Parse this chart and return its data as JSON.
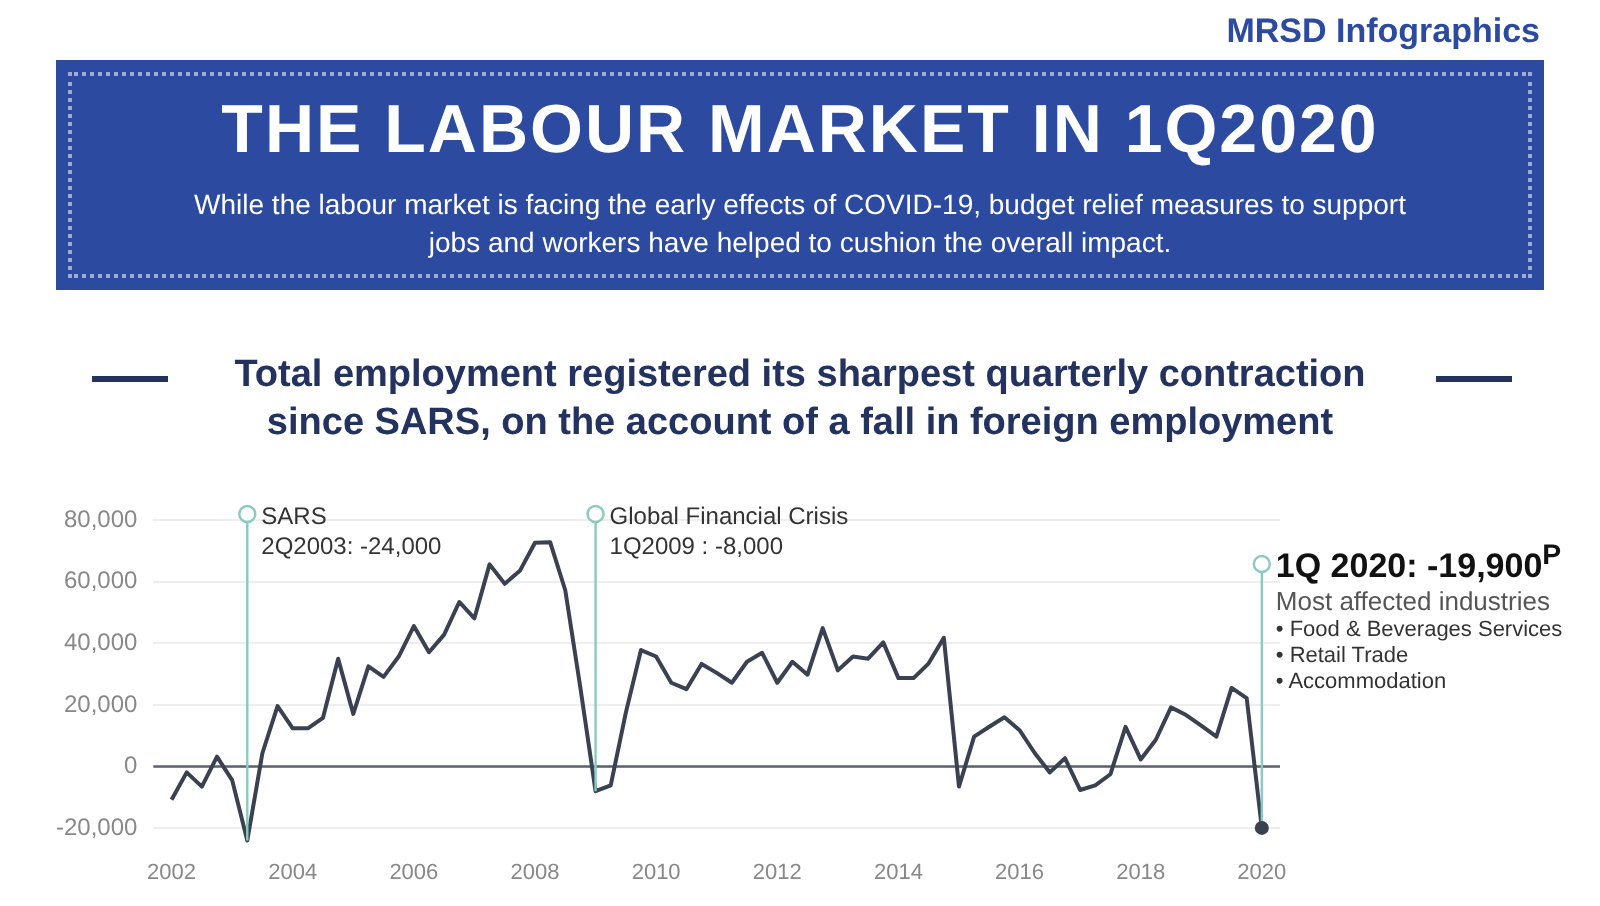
{
  "chart_data": {
    "type": "line",
    "title": "THE LABOUR MARKET IN 1Q2020",
    "subtitle": "While the labour market is facing the early effects of COVID-19, budget relief measures to support jobs and workers have helped to cushion the overall impact.",
    "annotations": [
      "MRSD Infographics",
      "Total employment registered its sharpest quarterly contraction since SARS, on the account of a fall in foreign employment",
      {
        "text": "SARS\n2Q2003: -24,000",
        "x": 2003.25,
        "y": -24000
      },
      {
        "text": "Global Financial Crisis\n1Q2009 : -8,000",
        "x": 2009,
        "y": -8000
      },
      {
        "text": "1Q 2020: -19,900$^{P}$",
        "x": 2020,
        "y": -19900
      },
      "Most affected industries",
      "• Food & Beverages Services",
      "• Retail Trade",
      "• Accommodation"
    ],
    "x": [
      2002,
      2002.25,
      2002.5,
      2002.75,
      2003,
      2003.25,
      2003.5,
      2003.75,
      2004,
      2004.25,
      2004.5,
      2004.75,
      2005,
      2005.25,
      2005.5,
      2005.75,
      2006,
      2006.25,
      2006.5,
      2006.75,
      2007,
      2007.25,
      2007.5,
      2007.75,
      2008,
      2008.25,
      2008.5,
      2008.75,
      2009,
      2009.25,
      2009.5,
      2009.75,
      2010,
      2010.25,
      2010.5,
      2010.75,
      2011,
      2011.25,
      2011.5,
      2011.75,
      2012,
      2012.25,
      2012.5,
      2012.75,
      2013,
      2013.25,
      2013.5,
      2013.75,
      2014,
      2014.25,
      2014.5,
      2014.75,
      2015,
      2015.25,
      2015.5,
      2015.75,
      2016,
      2016.25,
      2016.5,
      2016.75,
      2017,
      2017.25,
      2017.5,
      2017.75,
      2018,
      2018.25,
      2018.5,
      2018.75,
      2019,
      2019.25,
      2019.5,
      2019.75,
      2020
    ],
    "series": [
      {
        "color": "#3a4150",
        "values": [
          -10800,
          -1900,
          -6500,
          3200,
          -4400,
          -24000,
          4400,
          19600,
          12400,
          12400,
          15800,
          35000,
          17100,
          32500,
          29100,
          35700,
          45600,
          37100,
          42800,
          53400,
          48100,
          65600,
          59300,
          63500,
          72600,
          72800,
          57200,
          25500,
          -8000,
          -6100,
          17500,
          37800,
          35700,
          27200,
          25100,
          33300,
          30400,
          27200,
          34000,
          36900,
          27200,
          34000,
          29800,
          44900,
          31200,
          35700,
          35000,
          40300,
          28700,
          28700,
          33500,
          41800,
          -6500,
          9700,
          12900,
          16000,
          11800,
          4400,
          -1900,
          2700,
          -7600,
          -6100,
          -2500,
          12900,
          2300,
          8700,
          19200,
          16700,
          13300,
          9700,
          25500,
          22200,
          -19900
        ]
      }
    ],
    "xlim": [
      2001.7,
      2020.3
    ],
    "xticks": [
      2002,
      2004,
      2006,
      2008,
      2010,
      2012,
      2014,
      2016,
      2018,
      2020
    ],
    "ylim": [
      -25000,
      80000
    ],
    "yticks": [
      {
        "value": -20000,
        "label": "-20,000"
      },
      {
        "value": 0,
        "label": "0"
      },
      {
        "value": 20000,
        "label": "20,000"
      },
      {
        "value": 40000,
        "label": "40,000"
      },
      {
        "value": 60000,
        "label": "60,000"
      },
      {
        "value": 80000,
        "label": "80,000"
      }
    ],
    "ref_lines": [
      {
        "axis": "y",
        "value": 0,
        "color": "#5a6270"
      }
    ],
    "grid": "y",
    "legend": false,
    "marker": "none",
    "line_style": "solid"
  }
}
